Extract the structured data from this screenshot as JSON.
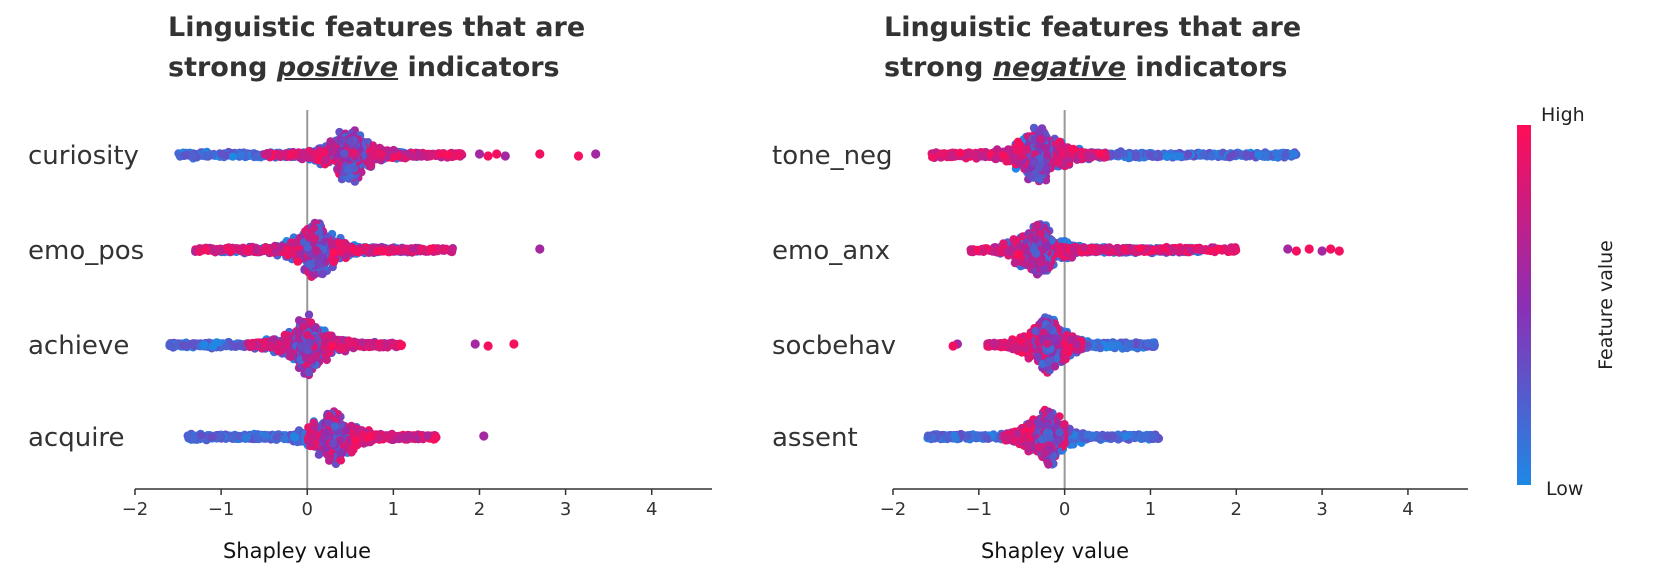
{
  "chart_data": [
    {
      "type": "scatter",
      "subtype": "beeswarm",
      "title_line1": "Linguistic features that are",
      "title_line2_pre": "strong",
      "title_line2_em": "positive",
      "title_line2_post": "indicators",
      "xlabel": "Shapley value",
      "xlim": [
        -2,
        4.7
      ],
      "xticks": [
        "−2",
        "−1",
        "0",
        "1",
        "2",
        "3",
        "4"
      ],
      "features": [
        {
          "name": "curiosity",
          "center": 0.5,
          "spread": 0.9,
          "low_range": [
            -1.5,
            1.3
          ],
          "high_range": [
            -0.5,
            1.8
          ],
          "outliers": [
            2.0,
            2.1,
            2.2,
            2.3,
            2.7,
            3.15,
            3.35
          ]
        },
        {
          "name": "emo_pos",
          "center": 0.1,
          "spread": 0.9,
          "low_range": [
            -1.0,
            1.3
          ],
          "high_range": [
            -1.3,
            1.7
          ],
          "outliers": [
            2.7
          ]
        },
        {
          "name": "achieve",
          "center": 0.0,
          "spread": 0.9,
          "low_range": [
            -1.6,
            0.9
          ],
          "high_range": [
            -0.7,
            1.1
          ],
          "outliers": [
            1.95,
            2.1,
            2.4
          ]
        },
        {
          "name": "acquire",
          "center": 0.3,
          "spread": 0.9,
          "low_range": [
            -1.4,
            0.6
          ],
          "high_range": [
            0.0,
            1.5
          ],
          "outliers": [
            2.05
          ]
        }
      ]
    },
    {
      "type": "scatter",
      "subtype": "beeswarm",
      "title_line1": "Linguistic features that are",
      "title_line2_pre": "strong",
      "title_line2_em": "negative",
      "title_line2_post": "indicators",
      "xlabel": "Shapley value",
      "xlim": [
        -2,
        4.7
      ],
      "xticks": [
        "−2",
        "−1",
        "0",
        "1",
        "2",
        "3",
        "4"
      ],
      "features": [
        {
          "name": "tone_neg",
          "center": -0.3,
          "spread": 1.0,
          "low_range": [
            -0.6,
            2.7
          ],
          "high_range": [
            -1.55,
            0.5
          ],
          "outliers": []
        },
        {
          "name": "emo_anx",
          "center": -0.3,
          "spread": 0.9,
          "low_range": [
            -0.8,
            1.6
          ],
          "high_range": [
            -1.1,
            2.0
          ],
          "outliers": [
            2.6,
            2.7,
            2.85,
            3.0,
            3.1,
            3.2
          ]
        },
        {
          "name": "socbehav",
          "center": -0.2,
          "spread": 0.8,
          "low_range": [
            -0.3,
            1.05
          ],
          "high_range": [
            -0.9,
            0.2
          ],
          "outliers": [
            -1.25,
            -1.3
          ]
        },
        {
          "name": "assent",
          "center": -0.2,
          "spread": 0.8,
          "low_range": [
            -1.6,
            1.1
          ],
          "high_range": [
            -0.7,
            0.0
          ],
          "outliers": []
        }
      ]
    }
  ],
  "colorbar": {
    "label": "Feature value",
    "high_label": "High",
    "low_label": "Low",
    "high_color": "#ff0d57",
    "mid_color": "#8c2fb4",
    "low_color": "#1e88e5"
  }
}
